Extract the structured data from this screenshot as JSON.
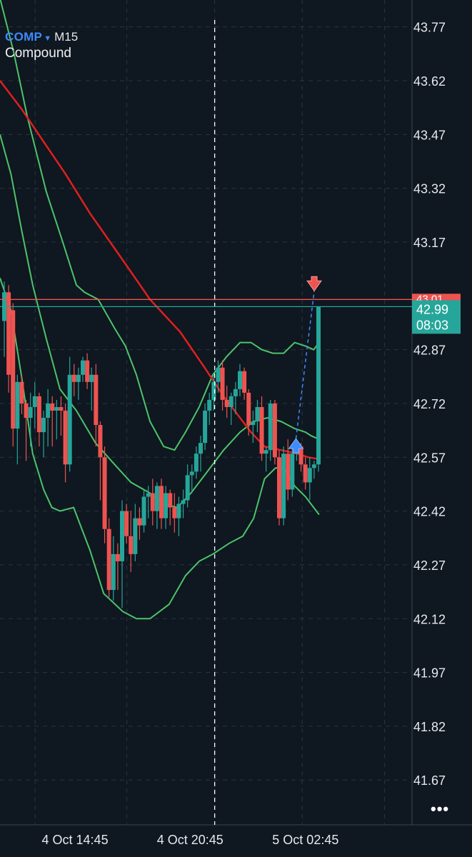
{
  "header": {
    "symbol": "COMP",
    "timeframe": "M15",
    "name": "Compound"
  },
  "colors": {
    "bg": "#0f1720",
    "grid": "#2b3440",
    "up": "#26a69a",
    "down": "#ef5350",
    "ma": "#e0201e",
    "bands": "#4cc46a",
    "trade": "#3d8bfd"
  },
  "chart_data": {
    "type": "candlestick",
    "ylim": [
      41.545,
      43.845
    ],
    "y_ticks": [
      "43.77",
      "43.62",
      "43.47",
      "43.32",
      "43.17",
      "42.87",
      "42.72",
      "42.57",
      "42.42",
      "42.27",
      "42.12",
      "41.97",
      "41.82",
      "41.67"
    ],
    "x_ticks": [
      "4 Oct 14:45",
      "4 Oct 20:45",
      "5 Oct 02:45"
    ],
    "price_label": {
      "price": "42.99",
      "countdown": "08:03"
    },
    "hidden_label": "43.01",
    "candles": [
      [
        42.95,
        43.06,
        42.85,
        43.03
      ],
      [
        43.03,
        43.05,
        42.75,
        42.8
      ],
      [
        42.98,
        43.0,
        42.6,
        42.65
      ],
      [
        42.65,
        42.8,
        42.55,
        42.78
      ],
      [
        42.78,
        42.8,
        42.69,
        42.72
      ],
      [
        42.72,
        42.73,
        42.56,
        42.68
      ],
      [
        42.68,
        42.75,
        42.6,
        42.71
      ],
      [
        42.71,
        42.78,
        42.65,
        42.74
      ],
      [
        42.74,
        42.75,
        42.6,
        42.64
      ],
      [
        42.64,
        42.7,
        42.57,
        42.68
      ],
      [
        42.68,
        42.76,
        42.6,
        42.72
      ],
      [
        42.72,
        42.74,
        42.6,
        42.7
      ],
      [
        42.7,
        42.73,
        42.62,
        42.71
      ],
      [
        42.71,
        42.74,
        42.63,
        42.7
      ],
      [
        42.7,
        42.72,
        42.5,
        42.55
      ],
      [
        42.55,
        42.85,
        42.53,
        42.8
      ],
      [
        42.8,
        42.83,
        42.74,
        42.78
      ],
      [
        42.78,
        42.82,
        42.73,
        42.8
      ],
      [
        42.8,
        42.85,
        42.78,
        42.84
      ],
      [
        42.84,
        42.86,
        42.76,
        42.78
      ],
      [
        42.78,
        42.82,
        42.7,
        42.8
      ],
      [
        42.8,
        42.83,
        42.6,
        42.66
      ],
      [
        42.66,
        42.67,
        42.45,
        42.57
      ],
      [
        42.57,
        42.6,
        42.33,
        42.37
      ],
      [
        42.37,
        42.4,
        42.18,
        42.2
      ],
      [
        42.2,
        42.35,
        42.17,
        42.3
      ],
      [
        42.3,
        42.33,
        42.2,
        42.28
      ],
      [
        42.28,
        42.45,
        42.15,
        42.42
      ],
      [
        42.42,
        42.44,
        42.33,
        42.35
      ],
      [
        42.35,
        42.42,
        42.25,
        42.3
      ],
      [
        42.3,
        42.44,
        42.28,
        42.4
      ],
      [
        42.4,
        42.43,
        42.34,
        42.38
      ],
      [
        42.38,
        42.48,
        42.36,
        42.46
      ],
      [
        42.46,
        42.49,
        42.4,
        42.47
      ],
      [
        42.47,
        42.51,
        42.38,
        42.42
      ],
      [
        42.42,
        42.5,
        42.37,
        42.49
      ],
      [
        42.49,
        42.51,
        42.37,
        42.4
      ],
      [
        42.4,
        42.49,
        42.37,
        42.47
      ],
      [
        42.47,
        42.48,
        42.38,
        42.43
      ],
      [
        42.43,
        42.47,
        42.36,
        42.4
      ],
      [
        42.4,
        42.46,
        42.35,
        42.44
      ],
      [
        42.44,
        42.48,
        42.4,
        42.45
      ],
      [
        42.45,
        42.55,
        42.43,
        42.52
      ],
      [
        42.52,
        42.55,
        42.47,
        42.53
      ],
      [
        42.53,
        42.6,
        42.51,
        42.58
      ],
      [
        42.58,
        42.63,
        42.53,
        42.61
      ],
      [
        42.61,
        42.72,
        42.59,
        42.7
      ],
      [
        42.7,
        42.75,
        42.66,
        42.73
      ],
      [
        42.73,
        42.8,
        42.7,
        42.78
      ],
      [
        42.78,
        42.84,
        42.75,
        42.82
      ],
      [
        42.82,
        42.84,
        42.7,
        42.73
      ],
      [
        42.73,
        42.77,
        42.68,
        42.71
      ],
      [
        42.71,
        42.75,
        42.66,
        42.74
      ],
      [
        42.74,
        42.78,
        42.69,
        42.76
      ],
      [
        42.76,
        42.83,
        42.74,
        42.81
      ],
      [
        42.81,
        42.82,
        42.73,
        42.75
      ],
      [
        42.75,
        42.76,
        42.63,
        42.66
      ],
      [
        42.66,
        42.7,
        42.61,
        42.67
      ],
      [
        42.67,
        42.73,
        42.64,
        42.71
      ],
      [
        42.71,
        42.74,
        42.56,
        42.58
      ],
      [
        42.58,
        42.6,
        42.53,
        42.59
      ],
      [
        42.59,
        42.73,
        42.56,
        42.72
      ],
      [
        42.72,
        42.73,
        42.55,
        42.57
      ],
      [
        42.57,
        42.59,
        42.38,
        42.4
      ],
      [
        42.4,
        42.6,
        42.38,
        42.58
      ],
      [
        42.58,
        42.62,
        42.45,
        42.48
      ],
      [
        42.48,
        42.6,
        42.46,
        42.58
      ],
      [
        42.58,
        42.61,
        42.56,
        42.6
      ],
      [
        42.6,
        42.61,
        42.53,
        42.55
      ],
      [
        42.55,
        42.57,
        42.48,
        42.5
      ],
      [
        42.5,
        42.57,
        42.45,
        42.54
      ],
      [
        42.54,
        42.56,
        42.51,
        42.55
      ],
      [
        42.55,
        42.99,
        42.53,
        42.99
      ]
    ],
    "ma": [
      [
        0,
        43.62
      ],
      [
        0.08,
        43.54
      ],
      [
        0.16,
        43.45
      ],
      [
        0.24,
        43.36
      ],
      [
        0.33,
        43.25
      ],
      [
        0.45,
        43.12
      ],
      [
        0.55,
        43.01
      ],
      [
        0.66,
        42.92
      ],
      [
        0.75,
        42.82
      ],
      [
        0.82,
        42.74
      ],
      [
        0.87,
        42.69
      ],
      [
        0.92,
        42.64
      ],
      [
        0.97,
        42.6
      ],
      [
        1.03,
        42.59
      ],
      [
        1.09,
        42.58
      ],
      [
        1.13,
        42.57
      ],
      [
        1.17,
        42.565
      ]
    ],
    "bb_upper": [
      [
        0,
        43.85
      ],
      [
        0.05,
        43.7
      ],
      [
        0.1,
        43.52
      ],
      [
        0.17,
        43.31
      ],
      [
        0.23,
        43.17
      ],
      [
        0.28,
        43.05
      ],
      [
        0.31,
        43.03
      ],
      [
        0.36,
        43.01
      ],
      [
        0.42,
        42.93
      ],
      [
        0.46,
        42.88
      ],
      [
        0.5,
        42.8
      ],
      [
        0.55,
        42.67
      ],
      [
        0.6,
        42.6
      ],
      [
        0.64,
        42.59
      ],
      [
        0.68,
        42.64
      ],
      [
        0.73,
        42.71
      ],
      [
        0.78,
        42.8
      ],
      [
        0.83,
        42.85
      ],
      [
        0.88,
        42.89
      ],
      [
        0.92,
        42.89
      ],
      [
        0.96,
        42.87
      ],
      [
        1.0,
        42.86
      ],
      [
        1.04,
        42.86
      ],
      [
        1.08,
        42.89
      ],
      [
        1.12,
        42.88
      ],
      [
        1.15,
        42.87
      ],
      [
        1.17,
        42.89
      ]
    ],
    "bb_middle": [
      [
        0,
        43.47
      ],
      [
        0.04,
        43.36
      ],
      [
        0.08,
        43.2
      ],
      [
        0.12,
        43.05
      ],
      [
        0.17,
        42.9
      ],
      [
        0.22,
        42.76
      ],
      [
        0.28,
        42.7
      ],
      [
        0.35,
        42.61
      ],
      [
        0.42,
        42.55
      ],
      [
        0.48,
        42.5
      ],
      [
        0.55,
        42.47
      ],
      [
        0.6,
        42.44
      ],
      [
        0.65,
        42.43
      ],
      [
        0.7,
        42.47
      ],
      [
        0.76,
        42.53
      ],
      [
        0.82,
        42.59
      ],
      [
        0.88,
        42.64
      ],
      [
        0.93,
        42.67
      ],
      [
        0.98,
        42.68
      ],
      [
        1.03,
        42.67
      ],
      [
        1.08,
        42.65
      ],
      [
        1.12,
        42.64
      ],
      [
        1.14,
        42.63
      ],
      [
        1.17,
        42.62
      ]
    ],
    "bb_lower": [
      [
        0,
        43.07
      ],
      [
        0.04,
        42.98
      ],
      [
        0.08,
        42.79
      ],
      [
        0.12,
        42.58
      ],
      [
        0.16,
        42.48
      ],
      [
        0.19,
        42.43
      ],
      [
        0.22,
        42.42
      ],
      [
        0.27,
        42.43
      ],
      [
        0.33,
        42.31
      ],
      [
        0.38,
        42.19
      ],
      [
        0.45,
        42.14
      ],
      [
        0.5,
        42.12
      ],
      [
        0.55,
        42.12
      ],
      [
        0.62,
        42.16
      ],
      [
        0.68,
        42.24
      ],
      [
        0.73,
        42.28
      ],
      [
        0.78,
        42.3
      ],
      [
        0.84,
        42.33
      ],
      [
        0.89,
        42.35
      ],
      [
        0.93,
        42.4
      ],
      [
        0.97,
        42.51
      ],
      [
        1.01,
        42.54
      ],
      [
        1.04,
        42.54
      ],
      [
        1.08,
        42.49
      ],
      [
        1.12,
        42.46
      ],
      [
        1.15,
        42.43
      ],
      [
        1.17,
        42.41
      ]
    ],
    "trade": {
      "entry_x": 1.085,
      "entry_price": 42.61,
      "exit_x": 1.152,
      "exit_price": 43.05
    },
    "vline_x": 0.787,
    "hlines": [
      {
        "price": 43.01,
        "color": "#ef5350"
      },
      {
        "price": 42.99,
        "color": "#26a69a"
      }
    ]
  }
}
